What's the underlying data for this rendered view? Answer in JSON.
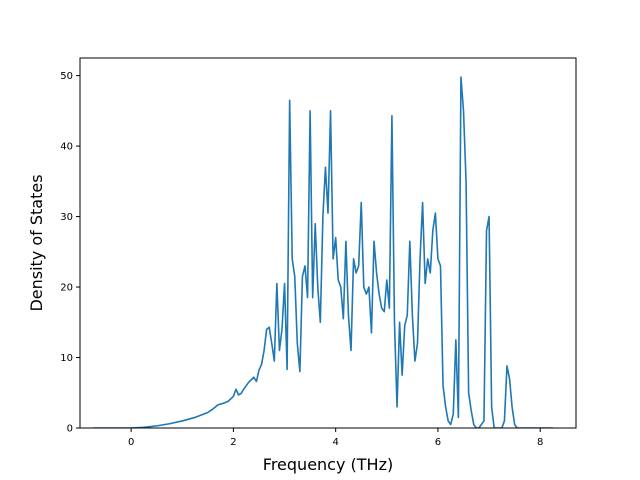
{
  "chart_data": {
    "type": "line",
    "title": "",
    "xlabel": "Frequency (THz)",
    "ylabel": "Density of States",
    "xlim": [
      -1.0,
      8.7
    ],
    "ylim": [
      0,
      52.5
    ],
    "xticks": [
      0,
      2,
      4,
      6,
      8
    ],
    "yticks": [
      0,
      10,
      20,
      30,
      40,
      50
    ],
    "grid": false,
    "legend": "none",
    "series": [
      {
        "color": "#1f77b4",
        "x": [
          -0.75,
          -0.5,
          -0.25,
          0.0,
          0.25,
          0.5,
          0.75,
          1.0,
          1.25,
          1.5,
          1.6,
          1.7,
          1.8,
          1.9,
          2.0,
          2.05,
          2.1,
          2.15,
          2.2,
          2.3,
          2.4,
          2.45,
          2.5,
          2.55,
          2.6,
          2.65,
          2.7,
          2.75,
          2.8,
          2.85,
          2.9,
          2.95,
          3.0,
          3.05,
          3.1,
          3.15,
          3.2,
          3.25,
          3.3,
          3.35,
          3.4,
          3.45,
          3.5,
          3.55,
          3.6,
          3.65,
          3.7,
          3.75,
          3.8,
          3.85,
          3.9,
          3.95,
          4.0,
          4.05,
          4.1,
          4.15,
          4.2,
          4.25,
          4.3,
          4.35,
          4.4,
          4.45,
          4.5,
          4.55,
          4.6,
          4.65,
          4.7,
          4.75,
          4.8,
          4.85,
          4.9,
          4.95,
          5.0,
          5.05,
          5.1,
          5.15,
          5.2,
          5.25,
          5.3,
          5.35,
          5.4,
          5.45,
          5.5,
          5.55,
          5.6,
          5.65,
          5.7,
          5.75,
          5.8,
          5.85,
          5.9,
          5.95,
          6.0,
          6.05,
          6.1,
          6.15,
          6.2,
          6.25,
          6.3,
          6.35,
          6.4,
          6.45,
          6.5,
          6.55,
          6.6,
          6.65,
          6.7,
          6.75,
          6.8,
          6.85,
          6.9,
          6.95,
          7.0,
          7.05,
          7.1,
          7.15,
          7.2,
          7.25,
          7.3,
          7.35,
          7.4,
          7.45,
          7.5,
          7.55,
          7.6,
          7.8,
          8.0,
          8.25
        ],
        "y": [
          0,
          0,
          0,
          0,
          0.1,
          0.3,
          0.6,
          1.0,
          1.5,
          2.2,
          2.7,
          3.3,
          3.5,
          3.8,
          4.5,
          5.5,
          4.7,
          4.9,
          5.5,
          6.5,
          7.2,
          6.6,
          8.2,
          9.0,
          11.0,
          14.0,
          14.3,
          12.0,
          9.5,
          20.5,
          11.0,
          14.0,
          20.5,
          8.3,
          46.5,
          24.0,
          21.5,
          12.0,
          8.0,
          21.5,
          23.0,
          18.5,
          45.0,
          18.5,
          29.0,
          20.0,
          15.0,
          30.0,
          37.0,
          30.5,
          45.0,
          24.0,
          27.0,
          21.0,
          20.0,
          15.5,
          26.5,
          16.0,
          11.0,
          24.0,
          22.0,
          23.0,
          32.0,
          20.0,
          19.0,
          20.0,
          13.5,
          26.5,
          22.0,
          19.0,
          17.0,
          16.5,
          21.0,
          17.0,
          44.3,
          15.0,
          3.0,
          15.0,
          7.5,
          14.5,
          16.0,
          26.5,
          16.0,
          9.5,
          12.0,
          24.0,
          32.0,
          20.5,
          24.0,
          22.0,
          28.0,
          30.5,
          24.0,
          23.0,
          6.0,
          3.0,
          1.0,
          0.5,
          2.0,
          12.5,
          1.5,
          49.8,
          45.0,
          35.0,
          5.0,
          2.5,
          0.5,
          0,
          0,
          0.5,
          1.0,
          28.0,
          30.0,
          3.0,
          0,
          0,
          0,
          0,
          1.0,
          8.8,
          7.0,
          3.0,
          0.5,
          0,
          0,
          0,
          0,
          0
        ]
      }
    ]
  }
}
